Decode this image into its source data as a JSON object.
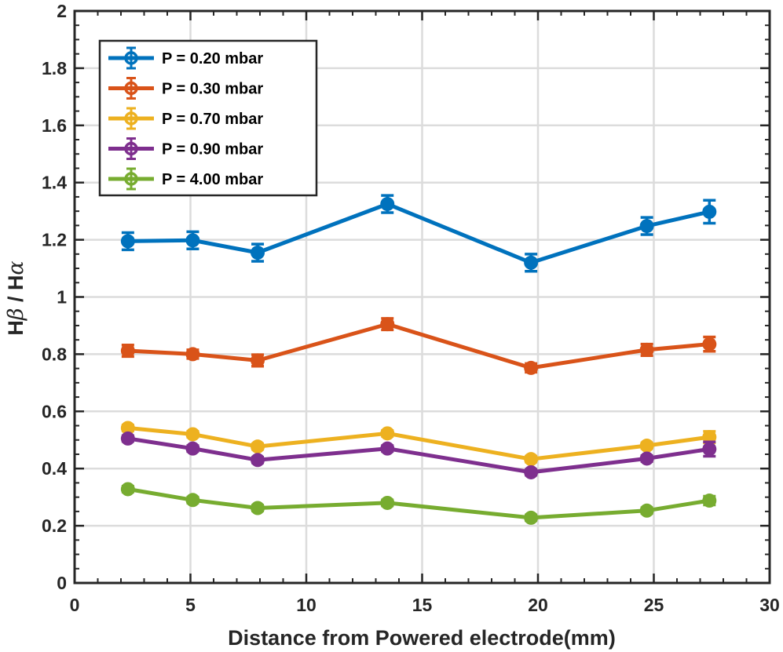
{
  "chart_data": {
    "type": "line",
    "title": "",
    "xlabel": "Distance from Powered electrode(mm)",
    "ylabel_parts": [
      "H",
      "β",
      " / H",
      "α"
    ],
    "xlim": [
      0,
      30
    ],
    "ylim": [
      0,
      2
    ],
    "grid": true,
    "legend_position": "top-left",
    "xticks": [
      0,
      5,
      10,
      15,
      20,
      25,
      30
    ],
    "xtick_labels": [
      "0",
      "5",
      "10",
      "15",
      "20",
      "25",
      "30"
    ],
    "yticks": [
      0,
      0.2,
      0.4,
      0.6,
      0.8,
      1.0,
      1.2,
      1.4,
      1.6,
      1.8,
      2.0
    ],
    "ytick_labels": [
      "0",
      "0.2",
      "0.4",
      "0.6",
      "0.8",
      "1",
      "1.2",
      "1.4",
      "1.6",
      "1.8",
      "2"
    ],
    "x": [
      2.3,
      5.1,
      7.9,
      13.5,
      19.7,
      24.7,
      27.4
    ],
    "series": [
      {
        "name": "P = 0.20 mbar",
        "color": "#0072BD",
        "values": [
          1.195,
          1.198,
          1.155,
          1.325,
          1.12,
          1.248,
          1.298
        ],
        "errors": [
          0.03,
          0.03,
          0.03,
          0.03,
          0.03,
          0.03,
          0.04
        ]
      },
      {
        "name": "P = 0.30 mbar",
        "color": "#D95319",
        "values": [
          0.812,
          0.8,
          0.778,
          0.905,
          0.752,
          0.815,
          0.835
        ],
        "errors": [
          0.02,
          0.015,
          0.02,
          0.02,
          0.015,
          0.02,
          0.025
        ]
      },
      {
        "name": "P = 0.70 mbar",
        "color": "#EDB120",
        "values": [
          0.542,
          0.52,
          0.477,
          0.523,
          0.433,
          0.48,
          0.51
        ],
        "errors": [
          0.01,
          0.01,
          0.01,
          0.01,
          0.01,
          0.01,
          0.02
        ]
      },
      {
        "name": "P = 0.90 mbar",
        "color": "#7E2F8E",
        "values": [
          0.505,
          0.47,
          0.43,
          0.47,
          0.387,
          0.435,
          0.468
        ],
        "errors": [
          0.01,
          0.01,
          0.01,
          0.01,
          0.01,
          0.01,
          0.025
        ]
      },
      {
        "name": "P = 4.00 mbar",
        "color": "#77AC30",
        "values": [
          0.328,
          0.29,
          0.262,
          0.28,
          0.228,
          0.253,
          0.288
        ],
        "errors": [
          0.01,
          0.01,
          0.01,
          0.01,
          0.01,
          0.01,
          0.015
        ]
      }
    ]
  }
}
